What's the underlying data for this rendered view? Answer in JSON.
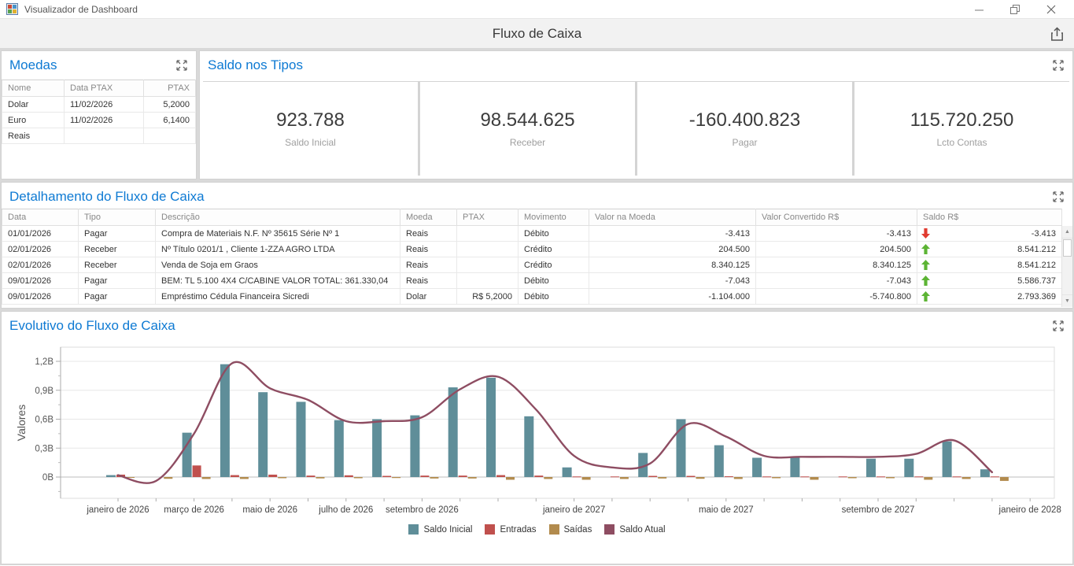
{
  "window": {
    "title": "Visualizador de Dashboard"
  },
  "header": {
    "title": "Fluxo de Caixa"
  },
  "panels": {
    "moedas": {
      "title": "Moedas",
      "columns": [
        "Nome",
        "Data PTAX",
        "PTAX"
      ],
      "rows": [
        {
          "nome": "Dolar",
          "data_ptax": "11/02/2026",
          "ptax": "5,2000"
        },
        {
          "nome": "Euro",
          "data_ptax": "11/02/2026",
          "ptax": "6,1400"
        },
        {
          "nome": "Reais",
          "data_ptax": "",
          "ptax": ""
        }
      ]
    },
    "saldo_tipos": {
      "title": "Saldo nos Tipos",
      "cards": [
        {
          "value": "923.788",
          "label": "Saldo Inicial"
        },
        {
          "value": "98.544.625",
          "label": "Receber"
        },
        {
          "value": "-160.400.823",
          "label": "Pagar"
        },
        {
          "value": "115.720.250",
          "label": "Lcto Contas"
        }
      ]
    },
    "detalhamento": {
      "title": "Detalhamento do Fluxo de Caixa",
      "columns": [
        "Data",
        "Tipo",
        "Descrição",
        "Moeda",
        "PTAX",
        "Movimento",
        "Valor na Moeda",
        "Valor Convertido R$",
        "Saldo R$"
      ],
      "rows": [
        {
          "data": "01/01/2026",
          "tipo": "Pagar",
          "descricao": "Compra de Materiais N.F. Nº 35615 Série Nº 1",
          "moeda": "Reais",
          "ptax": "",
          "movimento": "Débito",
          "valor_moeda": "-3.413",
          "valor_convertido": "-3.413",
          "saldo": "-3.413",
          "arrow": "down"
        },
        {
          "data": "02/01/2026",
          "tipo": "Receber",
          "descricao": "Nº Título 0201/1 , Cliente 1-ZZA AGRO LTDA",
          "moeda": "Reais",
          "ptax": "",
          "movimento": "Crédito",
          "valor_moeda": "204.500",
          "valor_convertido": "204.500",
          "saldo": "8.541.212",
          "arrow": "up"
        },
        {
          "data": "02/01/2026",
          "tipo": "Receber",
          "descricao": "Venda de Soja em Graos",
          "moeda": "Reais",
          "ptax": "",
          "movimento": "Crédito",
          "valor_moeda": "8.340.125",
          "valor_convertido": "8.340.125",
          "saldo": "8.541.212",
          "arrow": "up"
        },
        {
          "data": "09/01/2026",
          "tipo": "Pagar",
          "descricao": "BEM: TL 5.100 4X4 C/CABINE VALOR TOTAL: 361.330,04",
          "moeda": "Reais",
          "ptax": "",
          "movimento": "Débito",
          "valor_moeda": "-7.043",
          "valor_convertido": "-7.043",
          "saldo": "5.586.737",
          "arrow": "up"
        },
        {
          "data": "09/01/2026",
          "tipo": "Pagar",
          "descricao": "Empréstimo Cédula Financeira Sicredi",
          "moeda": "Dolar",
          "ptax": "R$ 5,2000",
          "movimento": "Débito",
          "valor_moeda": "-1.104.000",
          "valor_convertido": "-5.740.800",
          "saldo": "2.793.369",
          "arrow": "up"
        }
      ]
    },
    "evolutivo": {
      "title": "Evolutivo do Fluxo de Caixa"
    }
  },
  "chart_data": {
    "type": "bar+line",
    "title": "Evolutivo do Fluxo de Caixa",
    "ylabel": "Valores",
    "unit": "billions",
    "y_ticks": [
      "0B",
      "0,3B",
      "0,6B",
      "0,9B",
      "1,2B"
    ],
    "y_tick_values": [
      0,
      0.3,
      0.6,
      0.9,
      1.2
    ],
    "ylim": [
      -0.22,
      1.37
    ],
    "grid": true,
    "legend_position": "bottom",
    "months": [
      "2026-01",
      "2026-02",
      "2026-03",
      "2026-04",
      "2026-05",
      "2026-06",
      "2026-07",
      "2026-08",
      "2026-09",
      "2026-10",
      "2026-11",
      "2026-12",
      "2027-01",
      "2027-02",
      "2027-03",
      "2027-04",
      "2027-05",
      "2027-06",
      "2027-07",
      "2027-08",
      "2027-09",
      "2027-10",
      "2027-11",
      "2027-12",
      "2028-01"
    ],
    "x_axis_labels": [
      {
        "index": 0,
        "label": "janeiro de 2026"
      },
      {
        "index": 2,
        "label": "março de 2026"
      },
      {
        "index": 4,
        "label": "maio de 2026"
      },
      {
        "index": 6,
        "label": "julho de 2026"
      },
      {
        "index": 8,
        "label": "setembro de 2026"
      },
      {
        "index": 12,
        "label": "janeiro de 2027"
      },
      {
        "index": 16,
        "label": "maio de 2027"
      },
      {
        "index": 20,
        "label": "setembro de 2027"
      },
      {
        "index": 24,
        "label": "janeiro de 2028"
      }
    ],
    "series": [
      {
        "name": "Saldo Inicial",
        "type": "bar",
        "color": "#5f8e99",
        "values": [
          0.02,
          0,
          0.46,
          1.17,
          0.88,
          0.78,
          0.59,
          0.6,
          0.64,
          0.93,
          1.03,
          0.63,
          0.1,
          0,
          0.25,
          0.6,
          0.33,
          0.2,
          0.2,
          0,
          0.19,
          0.19,
          0.37,
          0.08,
          0
        ]
      },
      {
        "name": "Entradas",
        "type": "bar",
        "color": "#c0504d",
        "values": [
          0.025,
          0,
          0.12,
          0.02,
          0.025,
          0.015,
          0.018,
          0.012,
          0.015,
          0.015,
          0.02,
          0.015,
          0.006,
          0.006,
          0.012,
          0.012,
          0.008,
          0.006,
          0.006,
          0.006,
          0.006,
          0.006,
          0.006,
          0.006,
          0
        ]
      },
      {
        "name": "Saídas",
        "type": "bar",
        "color": "#b28b4d",
        "values": [
          -0.004,
          -0.018,
          -0.02,
          -0.02,
          -0.012,
          -0.014,
          -0.012,
          -0.01,
          -0.015,
          -0.015,
          -0.028,
          -0.02,
          -0.028,
          -0.02,
          -0.015,
          -0.018,
          -0.02,
          -0.012,
          -0.028,
          -0.012,
          -0.012,
          -0.028,
          -0.02,
          -0.04,
          0
        ]
      },
      {
        "name": "Saldo Atual",
        "type": "line",
        "color": "#8e4d62",
        "values": [
          0.02,
          -0.04,
          0.45,
          1.18,
          0.92,
          0.8,
          0.58,
          0.58,
          0.62,
          0.91,
          1.04,
          0.7,
          0.22,
          0.1,
          0.14,
          0.55,
          0.42,
          0.22,
          0.21,
          0.21,
          0.21,
          0.24,
          0.38,
          0.05
        ]
      }
    ]
  },
  "icons": {
    "export": "export-icon",
    "maximize": "maximize-icon",
    "scroll_up": "▲",
    "scroll_down": "▼"
  },
  "colors": {
    "accent_blue": "#0e7ad3",
    "up_green": "#5cb434",
    "down_red": "#e13b30"
  }
}
